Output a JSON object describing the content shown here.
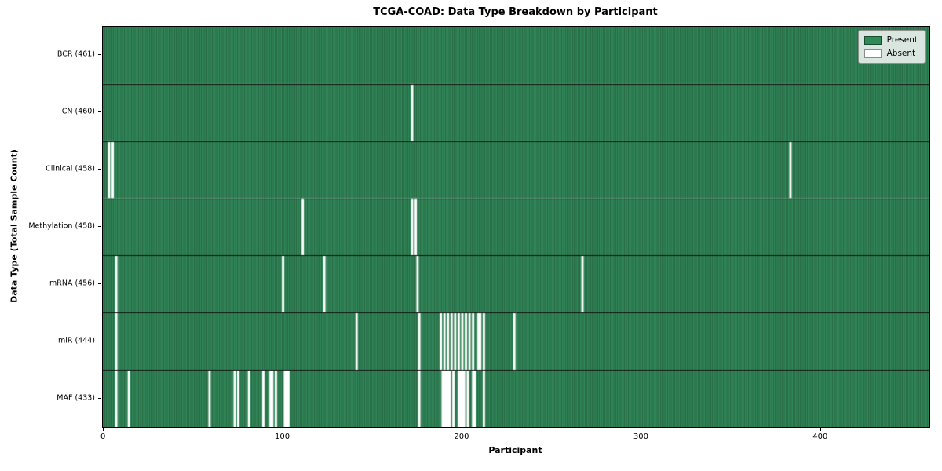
{
  "chart_data": {
    "type": "heatmap",
    "title": "TCGA-COAD: Data Type Breakdown by Participant",
    "xlabel": "Participant",
    "ylabel": "Data Type (Total Sample Count)",
    "x_ticks": [
      0,
      100,
      200,
      300,
      400
    ],
    "n_participants": 461,
    "grid": false,
    "legend_position": "upper right",
    "legend": [
      {
        "label": "Present",
        "color": "#2e8b57"
      },
      {
        "label": "Absent",
        "color": "#ffffff"
      }
    ],
    "colors": {
      "present": "#338a5b",
      "absent": "#ffffff",
      "bar_edge": "rgba(0,0,0,0.42)",
      "row_separator": "#111111",
      "axis": "#000000"
    },
    "rows": [
      {
        "name": "BCR",
        "label": "BCR (461)",
        "present_count": 461,
        "absent_participants": []
      },
      {
        "name": "CN",
        "label": "CN (460)",
        "present_count": 460,
        "absent_participants": [
          172
        ]
      },
      {
        "name": "Clinical",
        "label": "Clinical (458)",
        "present_count": 458,
        "absent_participants": [
          3,
          5,
          383
        ]
      },
      {
        "name": "Methylation",
        "label": "Methylation (458)",
        "present_count": 458,
        "absent_participants": [
          111,
          172,
          174
        ]
      },
      {
        "name": "mRNA",
        "label": "mRNA (456)",
        "present_count": 456,
        "absent_participants": [
          7,
          100,
          123,
          175,
          267
        ]
      },
      {
        "name": "miR",
        "label": "miR (444)",
        "present_count": 444,
        "absent_participants": [
          7,
          141,
          176,
          188,
          190,
          192,
          194,
          196,
          198,
          200,
          202,
          204,
          206,
          209,
          210,
          212,
          229
        ]
      },
      {
        "name": "MAF",
        "label": "MAF (433)",
        "present_count": 433,
        "absent_participants": [
          7,
          14,
          59,
          73,
          75,
          81,
          89,
          93,
          94,
          96,
          101,
          102,
          103,
          176,
          189,
          190,
          191,
          192,
          193,
          195,
          198,
          199,
          200,
          201,
          203,
          206,
          207,
          212
        ]
      }
    ]
  }
}
